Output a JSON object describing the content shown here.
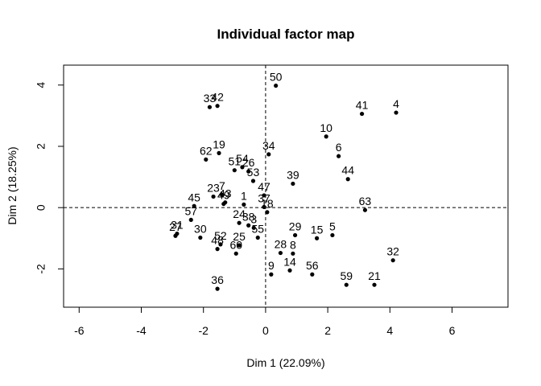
{
  "chart_data": {
    "type": "scatter",
    "title": "Individual factor map",
    "xlabel": "Dim 1 (22.09%)",
    "ylabel": "Dim 2 (18.25%)",
    "xlim": [
      -6.5,
      7.8
    ],
    "ylim": [
      -3.25,
      4.65
    ],
    "xticks": [
      -6,
      -4,
      -2,
      0,
      2,
      4,
      6
    ],
    "yticks": [
      -2,
      0,
      2,
      4
    ],
    "xtick_labels": [
      "-6",
      "-4",
      "-2",
      "0",
      "2",
      "4",
      "6"
    ],
    "ytick_labels": [
      "-2",
      "0",
      "2",
      "4"
    ],
    "reference_lines": {
      "x": 0,
      "y": 0,
      "style": "dashed"
    },
    "grid": false,
    "points": [
      {
        "label": "50",
        "x": 0.33,
        "y": 3.98
      },
      {
        "label": "41",
        "x": 3.1,
        "y": 3.06
      },
      {
        "label": "4",
        "x": 4.2,
        "y": 3.1
      },
      {
        "label": "33",
        "x": -1.8,
        "y": 3.28
      },
      {
        "label": "42",
        "x": -1.55,
        "y": 3.32
      },
      {
        "label": "10",
        "x": 1.95,
        "y": 2.32
      },
      {
        "label": "6",
        "x": 2.35,
        "y": 1.68
      },
      {
        "label": "34",
        "x": 0.1,
        "y": 1.74
      },
      {
        "label": "19",
        "x": -1.5,
        "y": 1.78
      },
      {
        "label": "62",
        "x": -1.92,
        "y": 1.57
      },
      {
        "label": "44",
        "x": 2.65,
        "y": 0.93
      },
      {
        "label": "54",
        "x": -0.75,
        "y": 1.32
      },
      {
        "label": "51",
        "x": -1.0,
        "y": 1.22
      },
      {
        "label": "26",
        "x": -0.55,
        "y": 1.18
      },
      {
        "label": "53",
        "x": -0.4,
        "y": 0.87
      },
      {
        "label": "39",
        "x": 0.88,
        "y": 0.78
      },
      {
        "label": "47",
        "x": -0.05,
        "y": 0.4
      },
      {
        "label": "23",
        "x": -1.68,
        "y": 0.36
      },
      {
        "label": "7",
        "x": -1.4,
        "y": 0.42
      },
      {
        "label": "1",
        "x": -0.7,
        "y": 0.1
      },
      {
        "label": "43",
        "x": -1.3,
        "y": 0.17
      },
      {
        "label": "49",
        "x": -1.35,
        "y": 0.12
      },
      {
        "label": "45",
        "x": -2.3,
        "y": 0.05
      },
      {
        "label": "63",
        "x": 3.2,
        "y": -0.08
      },
      {
        "label": "37",
        "x": -0.05,
        "y": 0.02
      },
      {
        "label": "18",
        "x": 0.05,
        "y": -0.15
      },
      {
        "label": "57",
        "x": -2.4,
        "y": -0.4
      },
      {
        "label": "24",
        "x": -0.85,
        "y": -0.5
      },
      {
        "label": "38",
        "x": -0.55,
        "y": -0.58
      },
      {
        "label": "3",
        "x": -0.38,
        "y": -0.66
      },
      {
        "label": "55",
        "x": -0.25,
        "y": -0.98
      },
      {
        "label": "29",
        "x": 0.95,
        "y": -0.9
      },
      {
        "label": "15",
        "x": 1.65,
        "y": -1.0
      },
      {
        "label": "5",
        "x": 2.15,
        "y": -0.9
      },
      {
        "label": "31",
        "x": -2.85,
        "y": -0.85
      },
      {
        "label": "27",
        "x": -2.9,
        "y": -0.92
      },
      {
        "label": "30",
        "x": -2.1,
        "y": -0.98
      },
      {
        "label": "52",
        "x": -1.45,
        "y": -1.2
      },
      {
        "label": "48",
        "x": -1.55,
        "y": -1.35
      },
      {
        "label": "25",
        "x": -0.85,
        "y": -1.23
      },
      {
        "label": "60",
        "x": -0.95,
        "y": -1.5
      },
      {
        "label": "28",
        "x": 0.48,
        "y": -1.48
      },
      {
        "label": "8",
        "x": 0.88,
        "y": -1.5
      },
      {
        "label": "32",
        "x": 4.1,
        "y": -1.72
      },
      {
        "label": "9",
        "x": 0.18,
        "y": -2.18
      },
      {
        "label": "14",
        "x": 0.78,
        "y": -2.05
      },
      {
        "label": "56",
        "x": 1.5,
        "y": -2.18
      },
      {
        "label": "59",
        "x": 2.6,
        "y": -2.52
      },
      {
        "label": "21",
        "x": 3.5,
        "y": -2.52
      },
      {
        "label": "36",
        "x": -1.55,
        "y": -2.65
      }
    ]
  }
}
